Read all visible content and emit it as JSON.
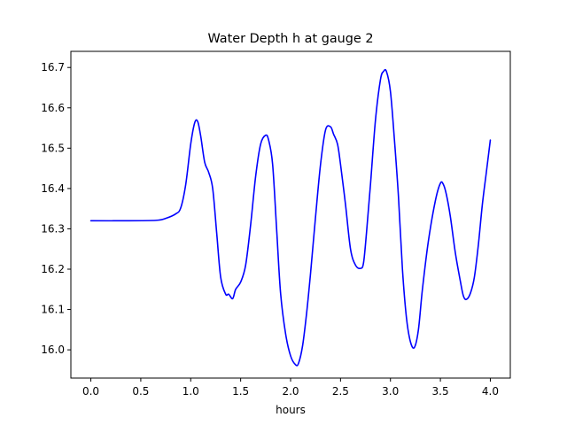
{
  "chart_data": {
    "type": "line",
    "title": "Water Depth h at gauge 2",
    "xlabel": "hours",
    "ylabel": "",
    "xlim": [
      -0.2,
      4.2
    ],
    "ylim": [
      15.93,
      16.74
    ],
    "xticks": [
      0.0,
      0.5,
      1.0,
      1.5,
      2.0,
      2.5,
      3.0,
      3.5,
      4.0
    ],
    "xtick_labels": [
      "0.0",
      "0.5",
      "1.0",
      "1.5",
      "2.0",
      "2.5",
      "3.0",
      "3.5",
      "4.0"
    ],
    "yticks": [
      16.0,
      16.1,
      16.2,
      16.3,
      16.4,
      16.5,
      16.6,
      16.7
    ],
    "ytick_labels": [
      "16.0",
      "16.1",
      "16.2",
      "16.3",
      "16.4",
      "16.5",
      "16.6",
      "16.7"
    ],
    "grid": false,
    "legend": "none",
    "series": [
      {
        "color": "#0000ff",
        "x": [
          0.0,
          0.3,
          0.65,
          0.75,
          0.85,
          0.9,
          0.95,
          1.0,
          1.04,
          1.07,
          1.1,
          1.14,
          1.18,
          1.22,
          1.26,
          1.3,
          1.35,
          1.38,
          1.42,
          1.45,
          1.5,
          1.55,
          1.6,
          1.65,
          1.7,
          1.75,
          1.78,
          1.82,
          1.86,
          1.9,
          1.95,
          2.0,
          2.05,
          2.08,
          2.12,
          2.16,
          2.2,
          2.25,
          2.3,
          2.35,
          2.4,
          2.43,
          2.47,
          2.5,
          2.55,
          2.6,
          2.65,
          2.7,
          2.73,
          2.76,
          2.8,
          2.85,
          2.9,
          2.93,
          2.96,
          3.0,
          3.04,
          3.08,
          3.12,
          3.16,
          3.2,
          3.24,
          3.28,
          3.32,
          3.38,
          3.45,
          3.5,
          3.53,
          3.56,
          3.6,
          3.65,
          3.7,
          3.73,
          3.76,
          3.8,
          3.84,
          3.88,
          3.92,
          3.96,
          4.0
        ],
        "y": [
          16.32,
          16.32,
          16.321,
          16.326,
          16.337,
          16.352,
          16.41,
          16.51,
          16.563,
          16.566,
          16.53,
          16.465,
          16.44,
          16.4,
          16.29,
          16.18,
          16.138,
          16.138,
          16.127,
          16.15,
          16.168,
          16.21,
          16.31,
          16.43,
          16.51,
          16.532,
          16.52,
          16.46,
          16.3,
          16.14,
          16.04,
          15.985,
          15.963,
          15.967,
          16.01,
          16.09,
          16.19,
          16.33,
          16.46,
          16.545,
          16.553,
          16.535,
          16.51,
          16.46,
          16.36,
          16.25,
          16.21,
          16.202,
          16.215,
          16.29,
          16.41,
          16.57,
          16.67,
          16.69,
          16.69,
          16.64,
          16.52,
          16.38,
          16.2,
          16.08,
          16.02,
          16.006,
          16.05,
          16.15,
          16.27,
          16.37,
          16.413,
          16.41,
          16.385,
          16.33,
          16.24,
          16.17,
          16.134,
          16.125,
          16.14,
          16.18,
          16.26,
          16.36,
          16.44,
          16.52
        ]
      }
    ]
  }
}
